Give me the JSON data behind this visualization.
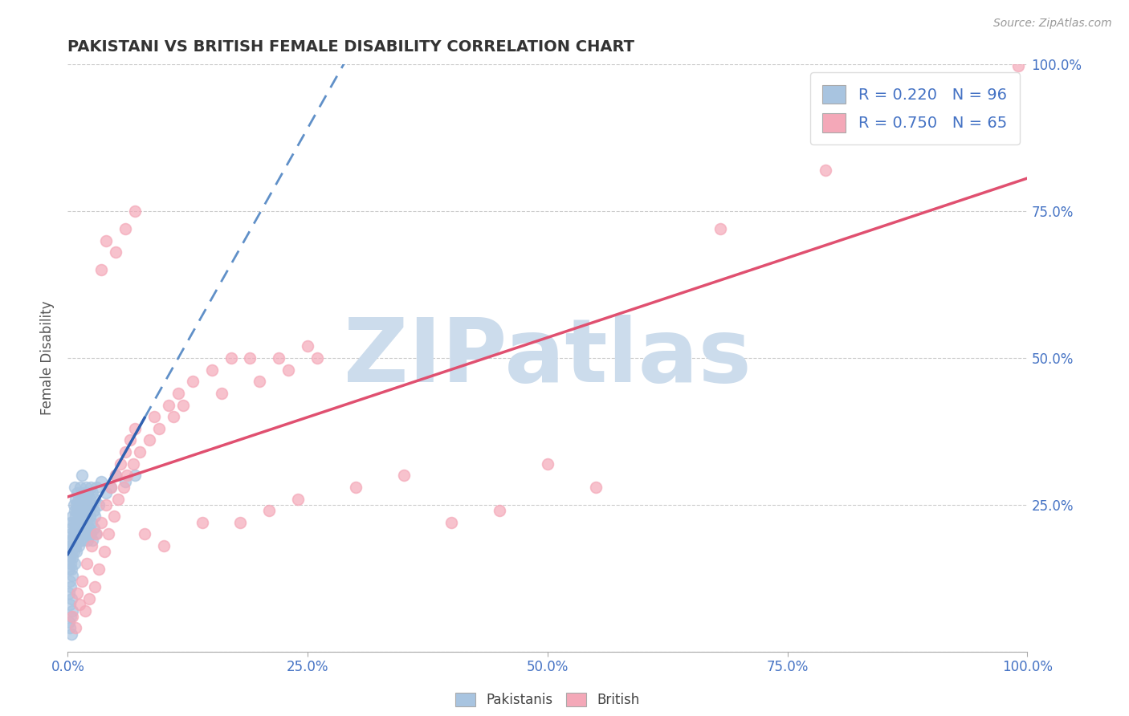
{
  "title": "PAKISTANI VS BRITISH FEMALE DISABILITY CORRELATION CHART",
  "source_text": "Source: ZipAtlas.com",
  "ylabel": "Female Disability",
  "xlim": [
    0,
    1.0
  ],
  "ylim": [
    0,
    1.0
  ],
  "xticks": [
    0.0,
    0.25,
    0.5,
    0.75,
    1.0
  ],
  "xticklabels": [
    "0.0%",
    "25.0%",
    "50.0%",
    "75.0%",
    "100.0%"
  ],
  "yticks": [
    0.0,
    0.25,
    0.5,
    0.75,
    1.0
  ],
  "yticklabels": [
    "",
    "25.0%",
    "50.0%",
    "75.0%",
    "100.0%"
  ],
  "pakistani_color": "#a8c4e0",
  "british_color": "#f4a8b8",
  "pakistani_R": 0.22,
  "pakistani_N": 96,
  "british_R": 0.75,
  "british_N": 65,
  "watermark": "ZIPatlas",
  "watermark_color": "#ccdcec",
  "pakistani_points": [
    [
      0.001,
      0.17
    ],
    [
      0.001,
      0.14
    ],
    [
      0.002,
      0.19
    ],
    [
      0.002,
      0.16
    ],
    [
      0.002,
      0.12
    ],
    [
      0.003,
      0.2
    ],
    [
      0.003,
      0.18
    ],
    [
      0.003,
      0.15
    ],
    [
      0.003,
      0.22
    ],
    [
      0.004,
      0.17
    ],
    [
      0.004,
      0.14
    ],
    [
      0.004,
      0.21
    ],
    [
      0.004,
      0.19
    ],
    [
      0.005,
      0.23
    ],
    [
      0.005,
      0.16
    ],
    [
      0.005,
      0.18
    ],
    [
      0.005,
      0.13
    ],
    [
      0.006,
      0.2
    ],
    [
      0.006,
      0.25
    ],
    [
      0.006,
      0.17
    ],
    [
      0.006,
      0.22
    ],
    [
      0.007,
      0.19
    ],
    [
      0.007,
      0.24
    ],
    [
      0.007,
      0.15
    ],
    [
      0.007,
      0.28
    ],
    [
      0.008,
      0.21
    ],
    [
      0.008,
      0.26
    ],
    [
      0.008,
      0.18
    ],
    [
      0.008,
      0.23
    ],
    [
      0.009,
      0.2
    ],
    [
      0.009,
      0.25
    ],
    [
      0.009,
      0.17
    ],
    [
      0.009,
      0.22
    ],
    [
      0.01,
      0.19
    ],
    [
      0.01,
      0.27
    ],
    [
      0.01,
      0.24
    ],
    [
      0.01,
      0.21
    ],
    [
      0.011,
      0.23
    ],
    [
      0.011,
      0.18
    ],
    [
      0.011,
      0.26
    ],
    [
      0.012,
      0.2
    ],
    [
      0.012,
      0.25
    ],
    [
      0.012,
      0.22
    ],
    [
      0.013,
      0.24
    ],
    [
      0.013,
      0.19
    ],
    [
      0.013,
      0.28
    ],
    [
      0.014,
      0.21
    ],
    [
      0.014,
      0.26
    ],
    [
      0.014,
      0.23
    ],
    [
      0.015,
      0.2
    ],
    [
      0.015,
      0.3
    ],
    [
      0.015,
      0.25
    ],
    [
      0.016,
      0.22
    ],
    [
      0.016,
      0.27
    ],
    [
      0.016,
      0.19
    ],
    [
      0.017,
      0.24
    ],
    [
      0.017,
      0.21
    ],
    [
      0.018,
      0.26
    ],
    [
      0.018,
      0.23
    ],
    [
      0.019,
      0.2
    ],
    [
      0.019,
      0.28
    ],
    [
      0.02,
      0.25
    ],
    [
      0.02,
      0.22
    ],
    [
      0.021,
      0.27
    ],
    [
      0.021,
      0.19
    ],
    [
      0.022,
      0.24
    ],
    [
      0.022,
      0.21
    ],
    [
      0.023,
      0.26
    ],
    [
      0.023,
      0.23
    ],
    [
      0.024,
      0.2
    ],
    [
      0.024,
      0.28
    ],
    [
      0.025,
      0.25
    ],
    [
      0.025,
      0.22
    ],
    [
      0.026,
      0.27
    ],
    [
      0.026,
      0.19
    ],
    [
      0.027,
      0.24
    ],
    [
      0.027,
      0.21
    ],
    [
      0.028,
      0.26
    ],
    [
      0.028,
      0.23
    ],
    [
      0.029,
      0.2
    ],
    [
      0.001,
      0.1
    ],
    [
      0.002,
      0.08
    ],
    [
      0.003,
      0.11
    ],
    [
      0.004,
      0.09
    ],
    [
      0.005,
      0.07
    ],
    [
      0.03,
      0.28
    ],
    [
      0.032,
      0.25
    ],
    [
      0.035,
      0.29
    ],
    [
      0.04,
      0.27
    ],
    [
      0.045,
      0.28
    ],
    [
      0.05,
      0.3
    ],
    [
      0.06,
      0.29
    ],
    [
      0.001,
      0.05
    ],
    [
      0.002,
      0.04
    ],
    [
      0.003,
      0.06
    ],
    [
      0.004,
      0.03
    ],
    [
      0.07,
      0.3
    ]
  ],
  "british_points": [
    [
      0.005,
      0.06
    ],
    [
      0.008,
      0.04
    ],
    [
      0.01,
      0.1
    ],
    [
      0.012,
      0.08
    ],
    [
      0.015,
      0.12
    ],
    [
      0.018,
      0.07
    ],
    [
      0.02,
      0.15
    ],
    [
      0.022,
      0.09
    ],
    [
      0.025,
      0.18
    ],
    [
      0.028,
      0.11
    ],
    [
      0.03,
      0.2
    ],
    [
      0.032,
      0.14
    ],
    [
      0.035,
      0.22
    ],
    [
      0.038,
      0.17
    ],
    [
      0.04,
      0.25
    ],
    [
      0.042,
      0.2
    ],
    [
      0.045,
      0.28
    ],
    [
      0.048,
      0.23
    ],
    [
      0.05,
      0.3
    ],
    [
      0.052,
      0.26
    ],
    [
      0.055,
      0.32
    ],
    [
      0.058,
      0.28
    ],
    [
      0.06,
      0.34
    ],
    [
      0.062,
      0.3
    ],
    [
      0.065,
      0.36
    ],
    [
      0.068,
      0.32
    ],
    [
      0.07,
      0.38
    ],
    [
      0.075,
      0.34
    ],
    [
      0.08,
      0.2
    ],
    [
      0.085,
      0.36
    ],
    [
      0.09,
      0.4
    ],
    [
      0.095,
      0.38
    ],
    [
      0.1,
      0.18
    ],
    [
      0.105,
      0.42
    ],
    [
      0.11,
      0.4
    ],
    [
      0.115,
      0.44
    ],
    [
      0.12,
      0.42
    ],
    [
      0.13,
      0.46
    ],
    [
      0.14,
      0.22
    ],
    [
      0.15,
      0.48
    ],
    [
      0.16,
      0.44
    ],
    [
      0.17,
      0.5
    ],
    [
      0.18,
      0.22
    ],
    [
      0.19,
      0.5
    ],
    [
      0.2,
      0.46
    ],
    [
      0.21,
      0.24
    ],
    [
      0.22,
      0.5
    ],
    [
      0.23,
      0.48
    ],
    [
      0.24,
      0.26
    ],
    [
      0.25,
      0.52
    ],
    [
      0.26,
      0.5
    ],
    [
      0.3,
      0.28
    ],
    [
      0.35,
      0.3
    ],
    [
      0.4,
      0.22
    ],
    [
      0.45,
      0.24
    ],
    [
      0.5,
      0.32
    ],
    [
      0.55,
      0.28
    ],
    [
      0.035,
      0.65
    ],
    [
      0.06,
      0.72
    ],
    [
      0.04,
      0.7
    ],
    [
      0.05,
      0.68
    ],
    [
      0.07,
      0.75
    ],
    [
      0.99,
      0.998
    ],
    [
      0.79,
      0.82
    ],
    [
      0.68,
      0.72
    ]
  ]
}
